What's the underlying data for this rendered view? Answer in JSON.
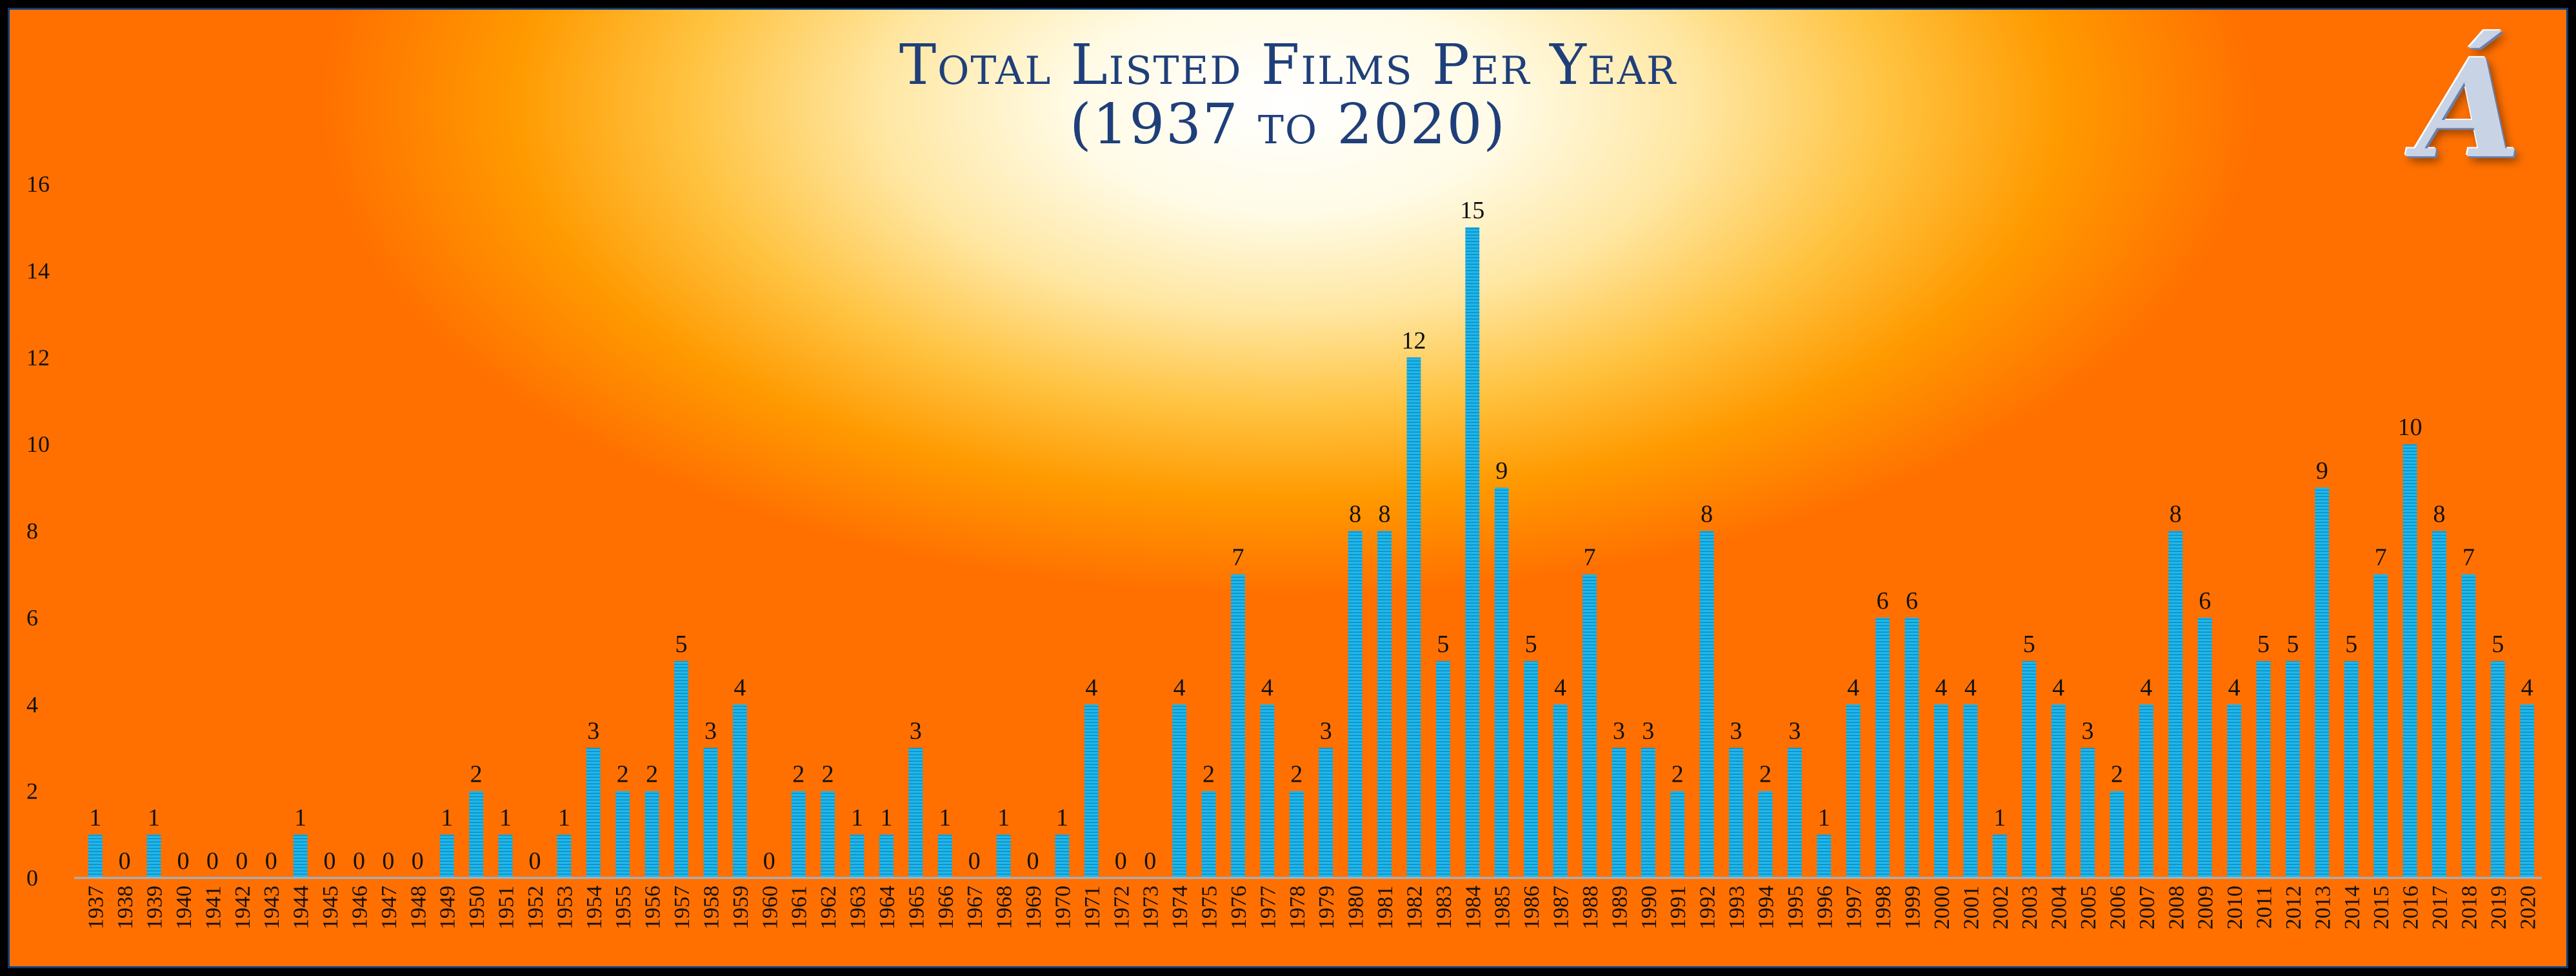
{
  "chart_data": {
    "type": "bar",
    "title_line1": "Total Listed Films Per Year",
    "title_line2": "(1937 to 2020)",
    "logo_text": "Á",
    "ylim": [
      0,
      16
    ],
    "yticks": [
      0,
      2,
      4,
      6,
      8,
      10,
      12,
      14,
      16
    ],
    "categories": [
      "1937",
      "1938",
      "1939",
      "1940",
      "1941",
      "1942",
      "1943",
      "1944",
      "1945",
      "1946",
      "1947",
      "1948",
      "1949",
      "1950",
      "1951",
      "1952",
      "1953",
      "1954",
      "1955",
      "1956",
      "1957",
      "1958",
      "1959",
      "1960",
      "1961",
      "1962",
      "1963",
      "1964",
      "1965",
      "1966",
      "1967",
      "1968",
      "1969",
      "1970",
      "1971",
      "1972",
      "1973",
      "1974",
      "1975",
      "1976",
      "1977",
      "1978",
      "1979",
      "1980",
      "1981",
      "1982",
      "1983",
      "1984",
      "1985",
      "1986",
      "1987",
      "1988",
      "1989",
      "1990",
      "1991",
      "1992",
      "1993",
      "1994",
      "1995",
      "1996",
      "1997",
      "1998",
      "1999",
      "2000",
      "2001",
      "2002",
      "2003",
      "2004",
      "2005",
      "2006",
      "2007",
      "2008",
      "2009",
      "2010",
      "2011",
      "2012",
      "2013",
      "2014",
      "2015",
      "2016",
      "2017",
      "2018",
      "2019",
      "2020"
    ],
    "values": [
      1,
      0,
      1,
      0,
      0,
      0,
      0,
      1,
      0,
      0,
      0,
      0,
      1,
      2,
      1,
      0,
      1,
      3,
      2,
      2,
      5,
      3,
      4,
      0,
      2,
      2,
      1,
      1,
      3,
      1,
      0,
      1,
      0,
      1,
      4,
      0,
      0,
      4,
      2,
      7,
      4,
      2,
      3,
      8,
      8,
      12,
      5,
      15,
      9,
      5,
      4,
      7,
      3,
      3,
      2,
      8,
      3,
      2,
      3,
      1,
      4,
      6,
      6,
      4,
      4,
      1,
      5,
      4,
      3,
      2,
      4,
      8,
      6,
      4,
      5,
      5,
      9,
      5,
      7,
      10,
      8,
      7,
      5,
      4
    ],
    "show_data_labels": true,
    "grid": false,
    "bar_color": "#1fb8e8"
  }
}
